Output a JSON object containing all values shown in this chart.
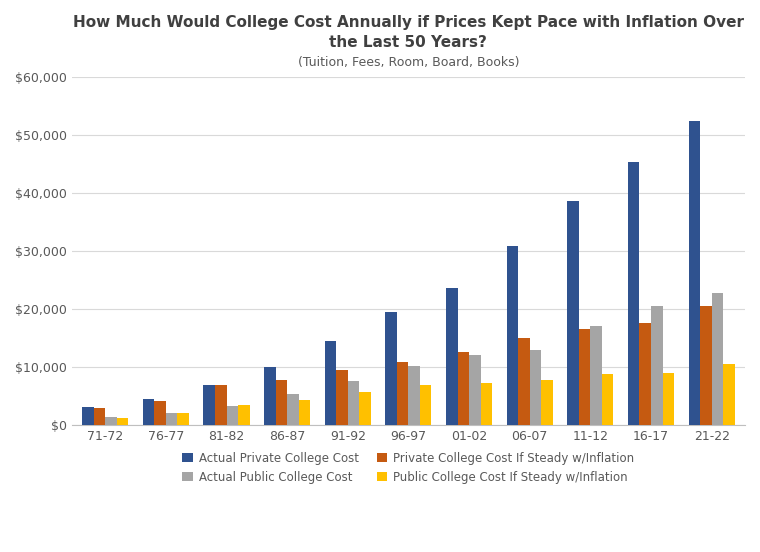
{
  "title_line1": "How Much Would College Cost Annually if Prices Kept Pace with Inflation Over",
  "title_line2": "the Last 50 Years?",
  "subtitle": "(Tuition, Fees, Room, Board, Books)",
  "categories": [
    "71-72",
    "76-77",
    "81-82",
    "86-87",
    "91-92",
    "96-97",
    "01-02",
    "06-07",
    "11-12",
    "16-17",
    "21-22"
  ],
  "actual_private": [
    3111,
    4490,
    6928,
    10039,
    14528,
    19518,
    23544,
    30807,
    38589,
    45370,
    52500
  ],
  "private_inflation": [
    2900,
    4100,
    6800,
    7800,
    9500,
    10800,
    12500,
    15000,
    16500,
    17500,
    20500
  ],
  "actual_public": [
    1410,
    2020,
    3196,
    5314,
    7614,
    10069,
    12014,
    12837,
    17000,
    20500,
    22690
  ],
  "public_inflation": [
    1250,
    2100,
    3500,
    4200,
    5600,
    6800,
    7200,
    7800,
    8800,
    9000,
    10500
  ],
  "colors": {
    "actual_private": "#2F528F",
    "private_inflation": "#C55A11",
    "actual_public": "#A5A5A5",
    "public_inflation": "#FFC000"
  },
  "legend_labels": [
    "Actual Private College Cost",
    "Private College Cost If Steady w/Inflation",
    "Actual Public College Cost",
    "Public College Cost If Steady w/Inflation"
  ],
  "ylim": [
    0,
    60000
  ],
  "yticks": [
    0,
    10000,
    20000,
    30000,
    40000,
    50000,
    60000
  ],
  "background_color": "#FFFFFF",
  "grid_color": "#D9D9D9"
}
